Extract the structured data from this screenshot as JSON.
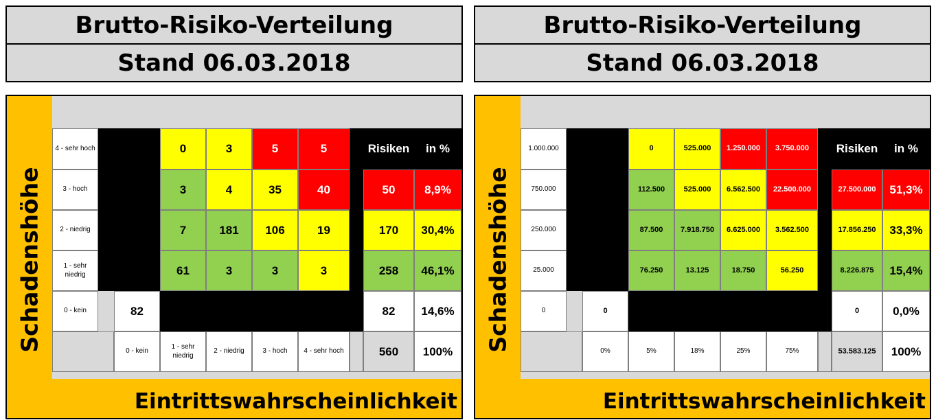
{
  "colors": {
    "green": "#92d050",
    "yellow": "#ffff00",
    "red": "#ff0000",
    "frame": "#ffc000",
    "header": "#d9d9d9"
  },
  "left": {
    "title": "Brutto-Risiko-Verteilung",
    "stand": "Stand 06.03.2018",
    "y_axis_label": "Schadenshöhe",
    "x_axis_label": "Eintrittswahrscheinlichkeit",
    "col_header_risiken": "Risiken",
    "col_header_pct": "in %",
    "rows": [
      {
        "label": "4 - sehr hoch",
        "cells": [
          "0",
          "3",
          "5",
          "5"
        ],
        "risiken": "",
        "pct": ""
      },
      {
        "label": "3 - hoch",
        "cells": [
          "3",
          "4",
          "35",
          "40"
        ],
        "risiken": "50",
        "pct": "8,9%"
      },
      {
        "label": "2 - niedrig",
        "cells": [
          "7",
          "181",
          "106",
          "19"
        ],
        "risiken": "170",
        "pct": "30,4%"
      },
      {
        "label": "1 - sehr niedrig",
        "cells": [
          "61",
          "3",
          "3",
          "3"
        ],
        "risiken": "258",
        "pct": "46,1%"
      },
      {
        "label": "0 - kein",
        "zero": "82",
        "risiken": "82",
        "pct": "14,6%"
      }
    ],
    "x_labels": [
      "0 - kein",
      "1 - sehr niedrig",
      "2 - niedrig",
      "3 - hoch",
      "4 - sehr hoch"
    ],
    "total": "560",
    "total_pct": "100%"
  },
  "right": {
    "title": "Brutto-Risiko-Verteilung",
    "stand": "Stand 06.03.2018",
    "y_axis_label": "Schadenshöhe",
    "x_axis_label": "Eintrittswahrscheinlichkeit",
    "col_header_risiken": "Risiken",
    "col_header_pct": "in %",
    "rows": [
      {
        "label": "1.000.000",
        "cells": [
          "0",
          "525.000",
          "1.250.000",
          "3.750.000"
        ],
        "risiken": "",
        "pct": ""
      },
      {
        "label": "750.000",
        "cells": [
          "112.500",
          "525.000",
          "6.562.500",
          "22.500.000"
        ],
        "risiken": "27.500.000",
        "pct": "51,3%"
      },
      {
        "label": "250.000",
        "cells": [
          "87.500",
          "7.918.750",
          "6.625.000",
          "3.562.500"
        ],
        "risiken": "17.856.250",
        "pct": "33,3%"
      },
      {
        "label": "25.000",
        "cells": [
          "76.250",
          "13.125",
          "18.750",
          "56.250"
        ],
        "risiken": "8.226.875",
        "pct": "15,4%"
      },
      {
        "label": "0",
        "zero": "0",
        "risiken": "0",
        "pct": "0,0%"
      }
    ],
    "x_labels": [
      "0%",
      "5%",
      "18%",
      "25%",
      "75%"
    ],
    "total": "53.583.125",
    "total_pct": "100%"
  }
}
